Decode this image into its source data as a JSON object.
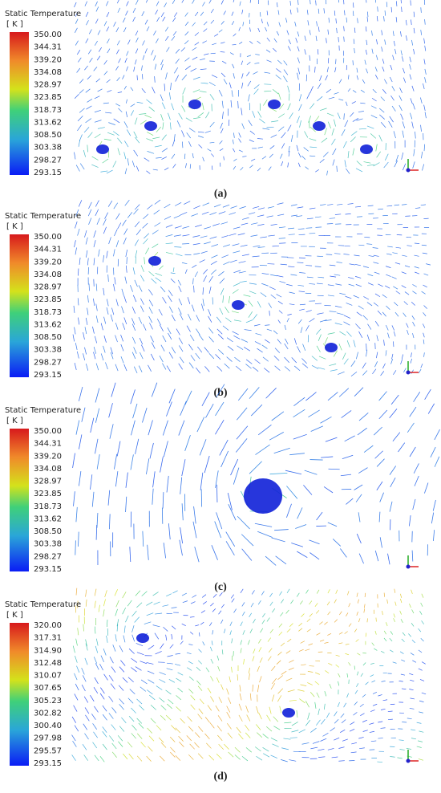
{
  "panels": [
    {
      "legend_title": "Static Temperature",
      "unit": "[ K ]",
      "ticks": [
        "350.00",
        "344.31",
        "339.20",
        "334.08",
        "328.97",
        "323.85",
        "318.73",
        "313.62",
        "308.50",
        "303.38",
        "298.27",
        "293.15"
      ],
      "caption": "(a)"
    },
    {
      "legend_title": "Static Temperature",
      "unit": "[ K ]",
      "ticks": [
        "350.00",
        "344.31",
        "339.20",
        "334.08",
        "328.97",
        "323.85",
        "318.73",
        "313.62",
        "308.50",
        "303.38",
        "298.27",
        "293.15"
      ],
      "caption": "(b)"
    },
    {
      "legend_title": "Static Temperature",
      "unit": "[ K ]",
      "ticks": [
        "350.00",
        "344.31",
        "339.20",
        "334.08",
        "328.97",
        "323.85",
        "318.73",
        "313.62",
        "308.50",
        "303.38",
        "298.27",
        "293.15"
      ],
      "caption": "(c)"
    },
    {
      "legend_title": "Static Temperature",
      "unit": "[ K ]",
      "ticks": [
        "320.00",
        "317.31",
        "314.90",
        "312.48",
        "310.07",
        "307.65",
        "305.23",
        "302.82",
        "300.40",
        "297.98",
        "295.57",
        "293.15"
      ],
      "caption": "(d)"
    }
  ]
}
